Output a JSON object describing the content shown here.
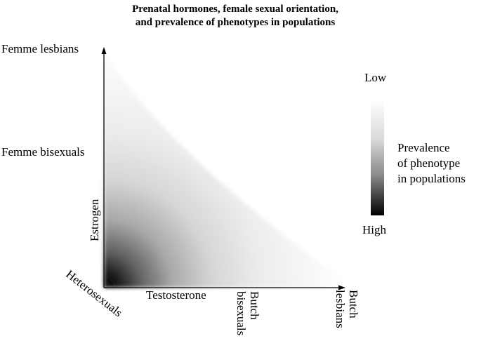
{
  "title": {
    "line1": "Prenatal hormones, female sexual orientation,",
    "line2": "and prevalence of phenotypes in populations"
  },
  "axes": {
    "x_label": "Testosterone",
    "y_label": "Estrogen"
  },
  "phenotypes": {
    "origin": "Heterosexuals",
    "femme_lesbians": "Femme lesbians",
    "femme_bisexuals": "Femme bisexuals",
    "butch_bisexuals_line1": "Butch",
    "butch_bisexuals_line2": "bisexuals",
    "butch_lesbians_line1": "Butch",
    "butch_lesbians_line2": "lesbians"
  },
  "colorbar": {
    "low": "Low",
    "high": "High",
    "label_line1": "Prevalence",
    "label_line2": "of phenotype",
    "label_line3": "in populations"
  }
}
